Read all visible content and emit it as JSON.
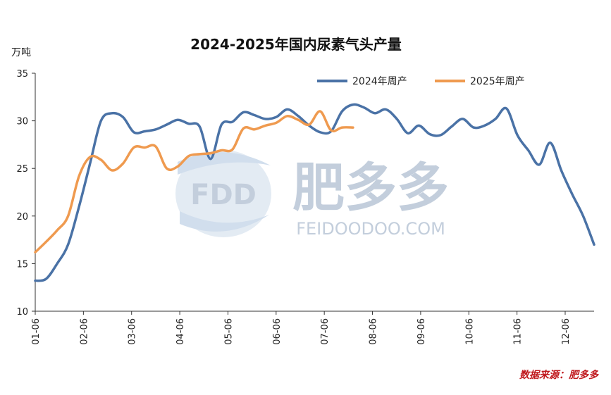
{
  "chart_data": {
    "type": "line",
    "title": "2024-2025年国内尿素气头产量",
    "ylabel": "万吨",
    "ylim": [
      10,
      35
    ],
    "yticks": [
      10,
      15,
      20,
      25,
      30,
      35
    ],
    "xticks": [
      "01-06",
      "02-06",
      "03-06",
      "04-06",
      "05-06",
      "06-06",
      "07-06",
      "08-06",
      "09-06",
      "10-06",
      "11-06",
      "12-06"
    ],
    "x_unit": "week index (1 = 01-06)",
    "grid": false,
    "legend": "top-right",
    "series": [
      {
        "name": "2024年周产",
        "color": "#4a72a6",
        "values": [
          13.2,
          13.4,
          15.0,
          17.0,
          21.0,
          25.5,
          30.0,
          30.8,
          30.4,
          28.8,
          28.9,
          29.1,
          29.6,
          30.1,
          29.7,
          29.4,
          26.0,
          29.6,
          29.9,
          30.9,
          30.6,
          30.2,
          30.4,
          31.2,
          30.5,
          29.5,
          28.8,
          28.9,
          31.0,
          31.7,
          31.4,
          30.8,
          31.2,
          30.2,
          28.7,
          29.5,
          28.6,
          28.5,
          29.4,
          30.2,
          29.3,
          29.5,
          30.2,
          31.3,
          28.5,
          26.9,
          25.4,
          27.7,
          24.8,
          22.3,
          20.0,
          17.0
        ]
      },
      {
        "name": "2025年周产",
        "color": "#ef9a4f",
        "values": [
          16.2,
          17.3,
          18.5,
          20.0,
          24.2,
          26.2,
          25.9,
          24.8,
          25.5,
          27.2,
          27.2,
          27.3,
          25.0,
          25.2,
          26.3,
          26.5,
          26.6,
          26.9,
          27.0,
          29.2,
          29.1,
          29.5,
          29.8,
          30.5,
          30.1,
          29.6,
          31.0,
          29.0,
          29.3,
          29.3
        ]
      }
    ]
  },
  "watermark": {
    "logo_text": "FDD",
    "brand_cn": "肥多多",
    "brand_en": "FEIDOODOO.COM"
  },
  "source": "数据来源：肥多多"
}
